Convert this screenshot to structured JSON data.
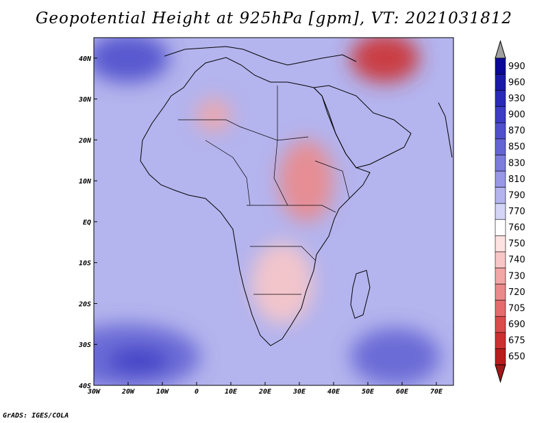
{
  "title": "Geopotential Height at 925hPa [gpm], VT: 2021031812",
  "footer": "GrADS: IGES/COLA",
  "map": {
    "lon_range": [
      -30,
      75
    ],
    "lat_range": [
      -40,
      45
    ],
    "lat_ticks": [
      {
        "label": "40N",
        "lat": 40
      },
      {
        "label": "30N",
        "lat": 30
      },
      {
        "label": "20N",
        "lat": 20
      },
      {
        "label": "10N",
        "lat": 10
      },
      {
        "label": "EQ",
        "lat": 0
      },
      {
        "label": "10S",
        "lat": -10
      },
      {
        "label": "20S",
        "lat": -20
      },
      {
        "label": "30S",
        "lat": -30
      },
      {
        "label": "40S",
        "lat": -40
      }
    ],
    "lon_ticks": [
      {
        "label": "30W",
        "lon": -30
      },
      {
        "label": "20W",
        "lon": -20
      },
      {
        "label": "10W",
        "lon": -10
      },
      {
        "label": "0",
        "lon": 0
      },
      {
        "label": "10E",
        "lon": 10
      },
      {
        "label": "20E",
        "lon": 20
      },
      {
        "label": "30E",
        "lon": 30
      },
      {
        "label": "40E",
        "lon": 40
      },
      {
        "label": "50E",
        "lon": 50
      },
      {
        "label": "60E",
        "lon": 60
      },
      {
        "label": "70E",
        "lon": 70
      }
    ]
  },
  "colorbar": {
    "levels": [
      {
        "label": "990",
        "color": "#0a0896"
      },
      {
        "label": "960",
        "color": "#1a1aa8"
      },
      {
        "label": "930",
        "color": "#2a2ab8"
      },
      {
        "label": "900",
        "color": "#3c3cc4"
      },
      {
        "label": "870",
        "color": "#5050cc"
      },
      {
        "label": "850",
        "color": "#6464d4"
      },
      {
        "label": "830",
        "color": "#7c7cdc"
      },
      {
        "label": "810",
        "color": "#9898e6"
      },
      {
        "label": "790",
        "color": "#b4b4ee"
      },
      {
        "label": "770",
        "color": "#d4d4f6"
      },
      {
        "label": "760",
        "color": "#ffffff"
      },
      {
        "label": "750",
        "color": "#fde2e2"
      },
      {
        "label": "740",
        "color": "#f8c6c6"
      },
      {
        "label": "730",
        "color": "#f2a6a6"
      },
      {
        "label": "720",
        "color": "#eb8a8a"
      },
      {
        "label": "705",
        "color": "#e46c6c"
      },
      {
        "label": "690",
        "color": "#da4c4c"
      },
      {
        "label": "675",
        "color": "#cc3030"
      },
      {
        "label": "650",
        "color": "#b81c1c"
      }
    ],
    "over_color": "#a0a0a0",
    "under_color": "#a01818"
  },
  "field_blobs": [
    {
      "name": "south-atlantic-high",
      "lon": -20,
      "lat": -33,
      "rx": 21,
      "ry": 8,
      "color": "#6464d4"
    },
    {
      "name": "south-atlantic-core",
      "lon": -17,
      "lat": -34,
      "rx": 9,
      "ry": 3,
      "color": "#3c3cc4"
    },
    {
      "name": "south-indian-high",
      "lon": 58,
      "lat": -33,
      "rx": 13,
      "ry": 7,
      "color": "#6464d4"
    },
    {
      "name": "north-atlantic",
      "lon": -20,
      "lat": 40,
      "rx": 12,
      "ry": 6,
      "color": "#5050cc"
    },
    {
      "name": "east-africa-low",
      "lon": 32,
      "lat": 10,
      "rx": 8,
      "ry": 10,
      "color": "#eb8a8a"
    },
    {
      "name": "sahara-low",
      "lon": 5,
      "lat": 26,
      "rx": 5,
      "ry": 4,
      "color": "#f2a6a6"
    },
    {
      "name": "middle-east-low",
      "lon": 55,
      "lat": 40,
      "rx": 10,
      "ry": 6,
      "color": "#cc3030"
    },
    {
      "name": "southern-africa-low",
      "lon": 25,
      "lat": -15,
      "rx": 9,
      "ry": 10,
      "color": "#f8c6c6"
    }
  ]
}
